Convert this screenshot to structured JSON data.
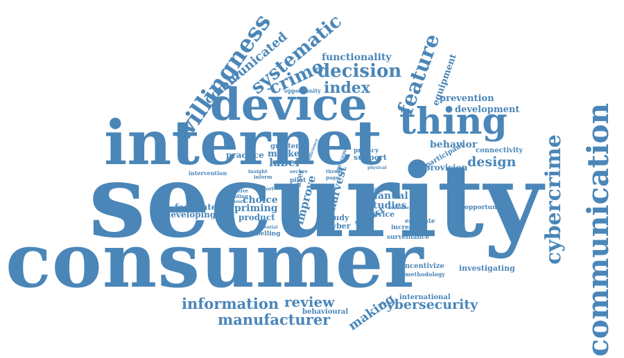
{
  "cloud": {
    "color": "#4a86b8",
    "words": [
      "security",
      "consumer",
      "internet",
      "device",
      "thing",
      "communication",
      "cybercrime",
      "willingness",
      "systematic",
      "crime",
      "decision",
      "index",
      "feature",
      "communicated",
      "functionality",
      "equipment",
      "prevention",
      "development",
      "behavior",
      "connectivity",
      "design",
      "provision",
      "participant",
      "information",
      "review",
      "manufacturer",
      "behavioural",
      "making",
      "cybersecurity",
      "international",
      "investigating",
      "incentivize",
      "methodology",
      "surveillance",
      "increase",
      "estimate",
      "manual",
      "studies",
      "advice",
      "impact",
      "harvest",
      "improve",
      "study",
      "cyber",
      "choice",
      "priming",
      "product",
      "labelling",
      "facilitated",
      "developing",
      "practice",
      "greater",
      "market",
      "label",
      "intervention",
      "opportunity",
      "opportunities",
      "privacy",
      "support",
      "pilot",
      "user",
      "government",
      "export",
      "finding",
      "incentive",
      "exposure",
      "insight",
      "inform",
      "secure",
      "threat",
      "page",
      "physical",
      "willing",
      "available",
      "efficiency",
      "potential"
    ]
  }
}
